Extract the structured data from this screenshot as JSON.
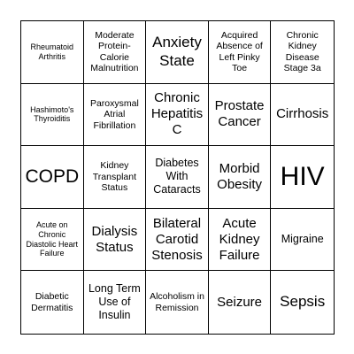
{
  "board": {
    "cells": [
      {
        "text": "Rheumatoid Arthritis",
        "size": "s-xs"
      },
      {
        "text": "Moderate Protein-Calorie Malnutrition",
        "size": "s-sm"
      },
      {
        "text": "Anxiety State",
        "size": "s-xl"
      },
      {
        "text": "Acquired Absence of Left Pinky Toe",
        "size": "s-sm"
      },
      {
        "text": "Chronic Kidney Disease Stage 3a",
        "size": "s-sm"
      },
      {
        "text": "Hashimoto's Thyroiditis",
        "size": "s-xs"
      },
      {
        "text": "Paroxysmal Atrial Fibrillation",
        "size": "s-sm"
      },
      {
        "text": "Chronic Hepatitis C",
        "size": "s-lg"
      },
      {
        "text": "Prostate Cancer",
        "size": "s-lg"
      },
      {
        "text": "Cirrhosis",
        "size": "s-lg"
      },
      {
        "text": "COPD",
        "size": "s-xxl"
      },
      {
        "text": "Kidney Transplant Status",
        "size": "s-sm"
      },
      {
        "text": "Diabetes With Cataracts",
        "size": "s-md"
      },
      {
        "text": "Morbid Obesity",
        "size": "s-lg"
      },
      {
        "text": "HIV",
        "size": "s-huge"
      },
      {
        "text": "Acute on Chronic Diastolic Heart Failure",
        "size": "s-xs"
      },
      {
        "text": "Dialysis Status",
        "size": "s-lg"
      },
      {
        "text": "Bilateral Carotid Stenosis",
        "size": "s-lg"
      },
      {
        "text": "Acute Kidney Failure",
        "size": "s-lg"
      },
      {
        "text": "Migraine",
        "size": "s-md"
      },
      {
        "text": "Diabetic Dermatitis",
        "size": "s-sm"
      },
      {
        "text": "Long Term Use of Insulin",
        "size": "s-md"
      },
      {
        "text": "Alcoholism in Remission",
        "size": "s-sm"
      },
      {
        "text": "Seizure",
        "size": "s-lg"
      },
      {
        "text": "Sepsis",
        "size": "s-xl"
      }
    ]
  }
}
